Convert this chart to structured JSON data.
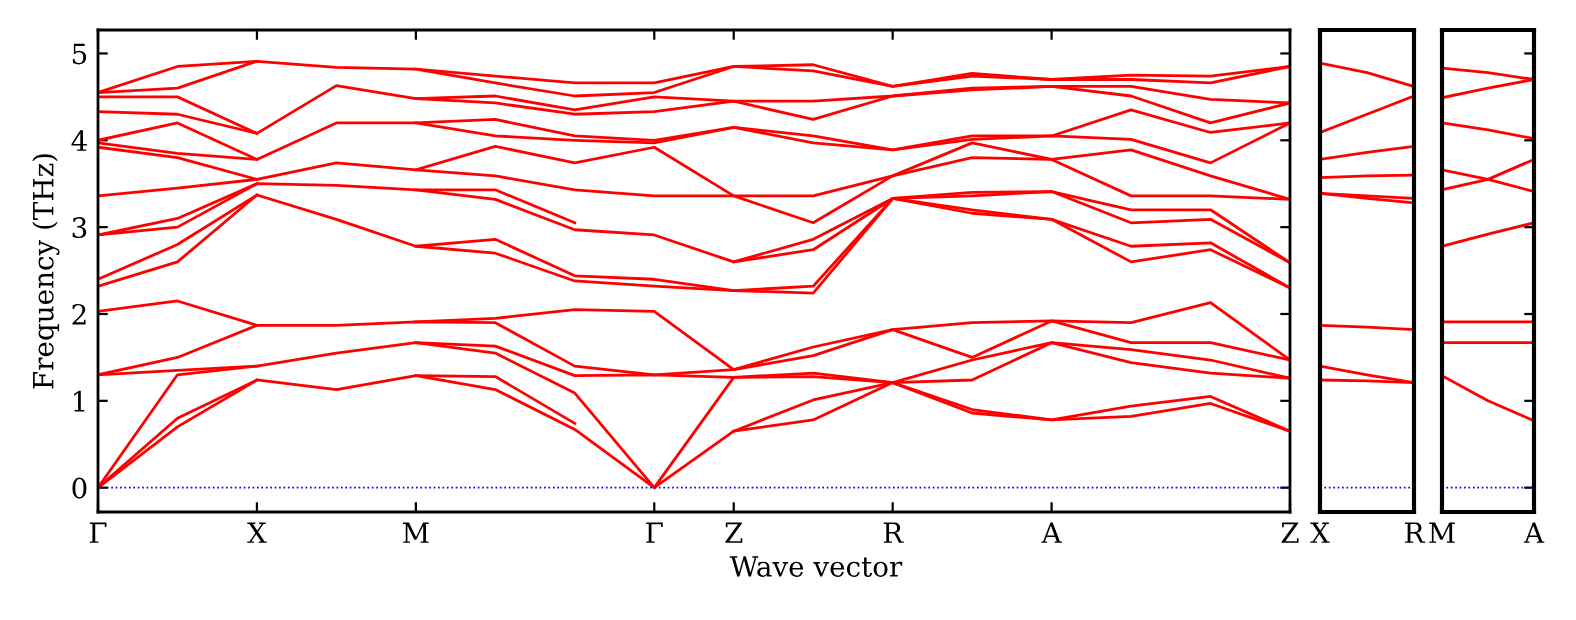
{
  "chart_data": [
    {
      "type": "line",
      "xlabel": "Wave vector",
      "ylabel": "Frequency (THz)",
      "categories": [
        "Γ",
        null,
        "X",
        null,
        "M",
        null,
        null,
        "Γ",
        "Z",
        null,
        "R",
        null,
        "A",
        null,
        null,
        "Z"
      ],
      "ylim": [
        -0.28,
        5.27
      ],
      "yticks": [
        0,
        1,
        2,
        3,
        4,
        5
      ],
      "marker": "none",
      "line_style": "solid",
      "ref_lines": [
        {
          "axis": "y",
          "value": 0,
          "color": "#0000ff",
          "line_style": "dotted"
        }
      ],
      "series": [
        {
          "color": "#ff0000",
          "values": [
            0,
            0.7,
            1.24,
            1.13,
            1.29,
            1.13,
            0.67,
            0,
            0.65,
            0.78,
            1.21,
            0.86,
            0.78,
            0.82,
            0.97,
            0.65
          ]
        },
        {
          "color": "#ff0000",
          "values": [
            0,
            0.8,
            1.24,
            null,
            1.29,
            1.28,
            0.74,
            null,
            0.65,
            1.01,
            1.21,
            0.9,
            0.78,
            0.94,
            1.05,
            0.65
          ]
        },
        {
          "color": "#ff0000",
          "values": [
            0,
            1.3,
            1.4,
            1.55,
            1.67,
            1.55,
            1.09,
            0,
            1.27,
            1.28,
            1.21,
            1.24,
            1.67,
            1.44,
            1.32,
            1.26
          ]
        },
        {
          "color": "#ff0000",
          "values": [
            1.3,
            1.35,
            1.4,
            null,
            1.67,
            1.63,
            1.29,
            1.3,
            1.27,
            1.32,
            1.21,
            1.47,
            1.67,
            1.59,
            1.47,
            1.26
          ]
        },
        {
          "color": "#ff0000",
          "values": [
            1.3,
            1.5,
            1.87,
            1.87,
            1.91,
            1.9,
            1.4,
            1.3,
            1.36,
            1.52,
            1.82,
            1.5,
            1.92,
            1.67,
            1.67,
            1.47
          ]
        },
        {
          "color": "#ff0000",
          "values": [
            2.03,
            2.15,
            1.87,
            null,
            1.91,
            1.95,
            2.05,
            2.03,
            1.36,
            1.62,
            1.82,
            1.9,
            1.92,
            1.9,
            2.13,
            1.47
          ]
        },
        {
          "color": "#ff0000",
          "values": [
            2.32,
            2.6,
            3.37,
            3.09,
            2.78,
            2.7,
            2.38,
            2.32,
            2.27,
            2.24,
            3.33,
            3.16,
            3.09,
            2.6,
            2.74,
            2.3
          ]
        },
        {
          "color": "#ff0000",
          "values": [
            2.4,
            2.8,
            3.37,
            null,
            2.78,
            2.86,
            2.44,
            2.4,
            2.27,
            2.32,
            3.33,
            3.2,
            3.09,
            2.78,
            2.82,
            2.3
          ]
        },
        {
          "color": "#ff0000",
          "values": [
            2.91,
            3.0,
            3.5,
            3.48,
            3.43,
            3.32,
            2.97,
            2.91,
            2.6,
            2.74,
            3.33,
            3.36,
            3.41,
            3.05,
            3.09,
            2.59
          ]
        },
        {
          "color": "#ff0000",
          "values": [
            2.91,
            3.1,
            3.5,
            null,
            3.43,
            3.43,
            3.05,
            null,
            2.6,
            2.86,
            3.33,
            3.4,
            3.41,
            3.2,
            3.2,
            2.59
          ]
        },
        {
          "color": "#ff0000",
          "values": [
            3.36,
            3.45,
            3.55,
            3.74,
            3.66,
            3.59,
            3.43,
            3.36,
            3.36,
            3.05,
            3.59,
            3.8,
            3.78,
            3.36,
            3.36,
            3.32
          ]
        },
        {
          "color": "#ff0000",
          "values": [
            3.92,
            3.8,
            3.55,
            null,
            3.66,
            3.93,
            3.74,
            3.92,
            3.36,
            3.36,
            3.59,
            3.97,
            3.78,
            3.89,
            3.59,
            3.32
          ]
        },
        {
          "color": "#ff0000",
          "values": [
            3.97,
            3.85,
            3.78,
            4.2,
            4.2,
            4.05,
            4.0,
            3.97,
            4.15,
            3.97,
            3.89,
            4.01,
            4.05,
            4.01,
            3.74,
            4.2
          ]
        },
        {
          "color": "#ff0000",
          "values": [
            4.0,
            4.2,
            3.78,
            null,
            4.2,
            4.24,
            4.05,
            4.0,
            4.15,
            4.05,
            3.89,
            4.05,
            4.05,
            4.35,
            4.09,
            4.2
          ]
        },
        {
          "color": "#ff0000",
          "values": [
            4.33,
            4.3,
            4.08,
            4.63,
            4.48,
            4.43,
            4.3,
            4.33,
            4.45,
            4.24,
            4.51,
            4.58,
            4.62,
            4.51,
            4.2,
            4.43
          ]
        },
        {
          "color": "#ff0000",
          "values": [
            4.5,
            4.5,
            4.08,
            null,
            4.48,
            4.51,
            4.35,
            4.5,
            4.45,
            4.45,
            4.51,
            4.6,
            4.62,
            4.62,
            4.47,
            4.43
          ]
        },
        {
          "color": "#ff0000",
          "values": [
            4.55,
            4.6,
            4.91,
            4.84,
            4.82,
            4.66,
            4.51,
            4.55,
            4.85,
            4.8,
            4.62,
            4.74,
            4.7,
            4.7,
            4.66,
            4.85
          ]
        },
        {
          "color": "#ff0000",
          "values": [
            4.55,
            4.85,
            4.91,
            null,
            4.82,
            4.74,
            4.66,
            4.66,
            4.85,
            4.87,
            4.62,
            4.77,
            4.7,
            4.75,
            4.74,
            4.85
          ]
        }
      ]
    },
    {
      "type": "line",
      "categories": [
        "X",
        null,
        "R"
      ],
      "ylim": [
        -0.28,
        5.27
      ],
      "tick_labels": "x",
      "marker": "none",
      "line_style": "solid",
      "ref_lines": [
        {
          "axis": "y",
          "value": 0,
          "color": "#0000ff",
          "line_style": "dotted"
        }
      ],
      "series": [
        {
          "color": "#ff0000",
          "values": [
            1.24,
            1.23,
            1.21
          ]
        },
        {
          "color": "#ff0000",
          "values": [
            1.4,
            1.3,
            1.21
          ]
        },
        {
          "color": "#ff0000",
          "values": [
            1.87,
            1.85,
            1.82
          ]
        },
        {
          "color": "#ff0000",
          "values": [
            3.39,
            3.33,
            3.28
          ]
        },
        {
          "color": "#ff0000",
          "values": [
            3.39,
            3.36,
            3.33
          ]
        },
        {
          "color": "#ff0000",
          "values": [
            3.57,
            3.59,
            3.6
          ]
        },
        {
          "color": "#ff0000",
          "values": [
            3.78,
            3.86,
            3.93
          ]
        },
        {
          "color": "#ff0000",
          "values": [
            4.09,
            4.3,
            4.51
          ]
        },
        {
          "color": "#ff0000",
          "values": [
            4.89,
            4.78,
            4.62
          ]
        }
      ]
    },
    {
      "type": "line",
      "categories": [
        "M",
        null,
        "A"
      ],
      "ylim": [
        -0.28,
        5.27
      ],
      "yticks": [
        {
          "value": 0,
          "label": null
        },
        {
          "value": 1,
          "label": null
        },
        {
          "value": 2,
          "label": null
        },
        {
          "value": 3,
          "label": null
        },
        {
          "value": 4,
          "label": null
        },
        {
          "value": 5,
          "label": null
        }
      ],
      "tick_labels": "x",
      "marker": "none",
      "line_style": "solid",
      "ref_lines": [
        {
          "axis": "y",
          "value": 0,
          "color": "#0000ff",
          "line_style": "dotted"
        }
      ],
      "series": [
        {
          "color": "#ff0000",
          "values": [
            1.29,
            1.0,
            0.77
          ]
        },
        {
          "color": "#ff0000",
          "values": [
            1.67,
            1.67,
            1.67
          ]
        },
        {
          "color": "#ff0000",
          "values": [
            1.91,
            1.91,
            1.91
          ]
        },
        {
          "color": "#ff0000",
          "values": [
            2.78,
            2.92,
            3.05
          ]
        },
        {
          "color": "#ff0000",
          "values": [
            3.43,
            3.55,
            3.78
          ]
        },
        {
          "color": "#ff0000",
          "values": [
            3.66,
            3.55,
            3.41
          ]
        },
        {
          "color": "#ff0000",
          "values": [
            4.2,
            4.12,
            4.02
          ]
        },
        {
          "color": "#ff0000",
          "values": [
            4.49,
            4.6,
            4.7
          ]
        },
        {
          "color": "#ff0000",
          "values": [
            4.83,
            4.78,
            4.7
          ]
        }
      ]
    }
  ]
}
